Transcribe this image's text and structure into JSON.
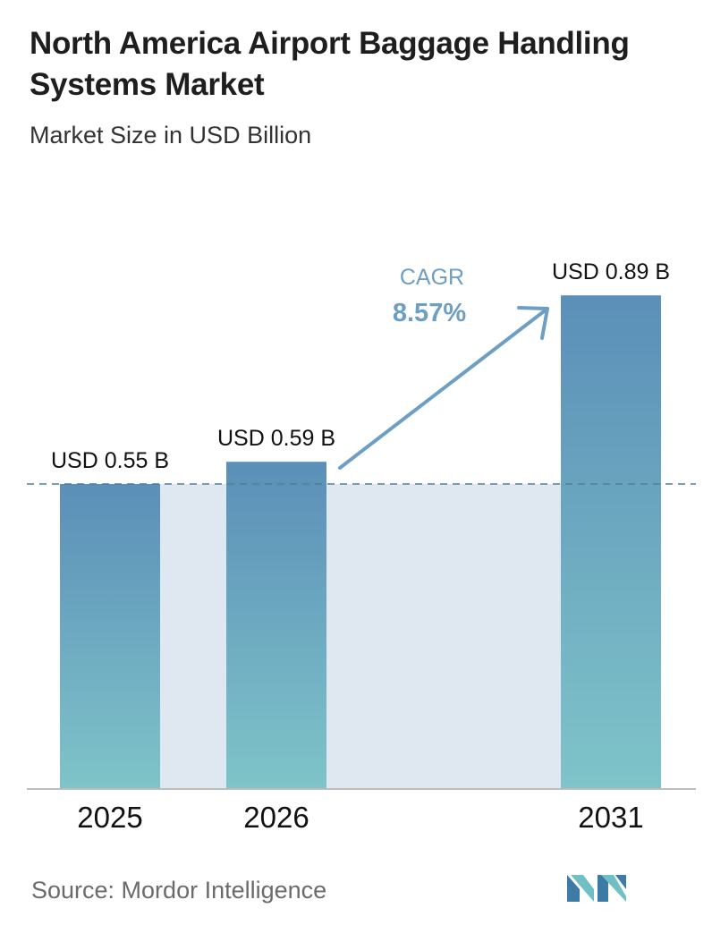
{
  "header": {
    "title": "North America Airport Baggage Handling Systems Market",
    "subtitle": "Market Size in USD Billion"
  },
  "cagr": {
    "label": "CAGR",
    "value": "8.57%"
  },
  "footer": {
    "source": "Source: Mordor Intelligence"
  },
  "colors": {
    "bar_top": "#5b8fb8",
    "bar_bottom": "#7fc4c9",
    "band": "#dfe8f1",
    "reference_line": "#4f7f9b",
    "arrow": "#6d9ec4",
    "cagr_text": "#6d9ec4",
    "baseline": "#bdbdbd"
  },
  "chart_data": {
    "type": "bar",
    "title": "North America Airport Baggage Handling Systems Market",
    "subtitle": "Market Size in USD Billion",
    "categories": [
      "2025",
      "2026",
      "2031"
    ],
    "values": [
      0.55,
      0.59,
      0.89
    ],
    "value_labels": [
      "USD 0.55 B",
      "USD 0.59 B",
      "USD 0.89 B"
    ],
    "unit": "USD Billion",
    "ylim": [
      0,
      1.0
    ],
    "reference_line_value": 0.55,
    "annotation": {
      "label": "CAGR",
      "value": "8.57%"
    },
    "grid": false,
    "legend": "none"
  }
}
